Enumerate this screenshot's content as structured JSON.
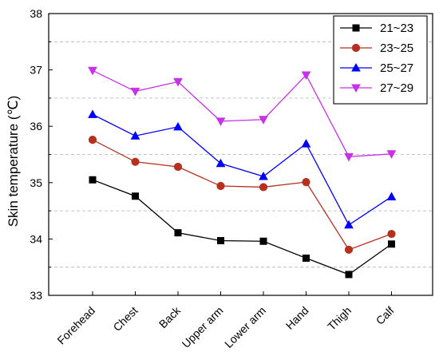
{
  "chart_data": {
    "type": "line",
    "title": "",
    "xlabel": "",
    "ylabel": "Skin temperature (℃)",
    "ylim": [
      33,
      38
    ],
    "yticks": [
      "33",
      "34",
      "35",
      "36",
      "37",
      "38"
    ],
    "grid": true,
    "legend_position": "top-right",
    "categories": [
      "Forehead",
      "Chest",
      "Back",
      "Upper arm",
      "Lower arm",
      "Hand",
      "Thigh",
      "Calf"
    ],
    "series": [
      {
        "name": "21~23",
        "color": "#000000",
        "marker": "square",
        "values": [
          35.05,
          34.76,
          34.11,
          33.97,
          33.96,
          33.66,
          33.37,
          33.91
        ]
      },
      {
        "name": "23~25",
        "color": "#b5301f",
        "marker": "circle",
        "values": [
          35.76,
          35.37,
          35.28,
          34.94,
          34.92,
          35.01,
          33.81,
          34.09
        ]
      },
      {
        "name": "25~27",
        "color": "#0000ff",
        "marker": "triangle-up",
        "values": [
          36.21,
          35.83,
          35.99,
          35.34,
          35.11,
          35.69,
          34.25,
          34.75
        ]
      },
      {
        "name": "27~29",
        "color": "#c832e6",
        "marker": "triangle-down",
        "values": [
          36.99,
          36.62,
          36.79,
          36.09,
          36.12,
          36.91,
          35.46,
          35.51
        ]
      }
    ]
  }
}
